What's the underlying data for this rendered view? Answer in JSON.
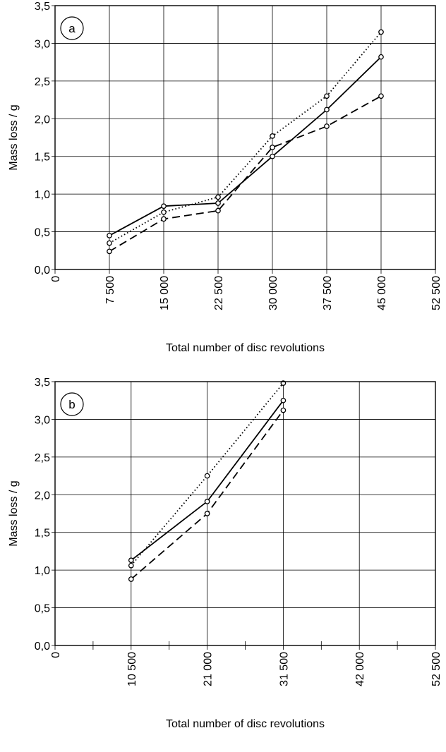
{
  "chart_data": [
    {
      "type": "line",
      "panel_label": "a",
      "xlabel": "Total number of disc revolutions",
      "ylabel": "Mass loss / g",
      "xlim": [
        0,
        52500
      ],
      "ylim": [
        0,
        3.5
      ],
      "grid": true,
      "x_ticks": [
        0,
        7500,
        15000,
        22500,
        30000,
        37500,
        45000,
        52500
      ],
      "x_tick_labels": [
        "0",
        "7 500",
        "15 000",
        "22 500",
        "30 000",
        "37 500",
        "45 000",
        "52 500"
      ],
      "y_ticks": [
        0,
        0.5,
        1.0,
        1.5,
        2.0,
        2.5,
        3.0,
        3.5
      ],
      "y_tick_labels": [
        "0,0",
        "0,5",
        "1,0",
        "1,5",
        "2,0",
        "2,5",
        "3,0",
        "3,5"
      ],
      "minor_x_ticks": [],
      "series": [
        {
          "style": "solid",
          "x": [
            7500,
            15000,
            22500,
            30000,
            37500,
            45000
          ],
          "values": [
            0.45,
            0.84,
            0.88,
            1.5,
            2.12,
            2.82
          ]
        },
        {
          "style": "dotted",
          "x": [
            7500,
            15000,
            22500,
            30000,
            37500,
            45000
          ],
          "values": [
            0.35,
            0.76,
            0.96,
            1.77,
            2.3,
            3.15
          ]
        },
        {
          "style": "dashed",
          "x": [
            7500,
            15000,
            22500,
            30000,
            37500,
            45000
          ],
          "values": [
            0.24,
            0.67,
            0.78,
            1.62,
            1.9,
            2.3
          ]
        }
      ]
    },
    {
      "type": "line",
      "panel_label": "b",
      "xlabel": "Total number of disc revolutions",
      "ylabel": "Mass loss / g",
      "xlim": [
        0,
        52500
      ],
      "ylim": [
        0,
        3.5
      ],
      "grid": true,
      "x_ticks": [
        0,
        10500,
        21000,
        31500,
        42000,
        52500
      ],
      "x_tick_labels": [
        "0",
        "10 500",
        "21 000",
        "31 500",
        "42 000",
        "52 500"
      ],
      "y_ticks": [
        0,
        0.5,
        1.0,
        1.5,
        2.0,
        2.5,
        3.0,
        3.5
      ],
      "y_tick_labels": [
        "0,0",
        "0,5",
        "1,0",
        "1,5",
        "2,0",
        "2,5",
        "3,0",
        "3,5"
      ],
      "minor_x_ticks": [
        5250,
        15750,
        26250,
        36750,
        47250
      ],
      "series": [
        {
          "style": "solid",
          "x": [
            10500,
            21000,
            31500
          ],
          "values": [
            1.13,
            1.91,
            3.25
          ]
        },
        {
          "style": "dotted",
          "x": [
            10500,
            21000,
            31500
          ],
          "values": [
            1.06,
            2.25,
            3.48
          ]
        },
        {
          "style": "dashed",
          "x": [
            10500,
            21000,
            31500
          ],
          "values": [
            0.88,
            1.75,
            3.12
          ]
        }
      ]
    }
  ]
}
